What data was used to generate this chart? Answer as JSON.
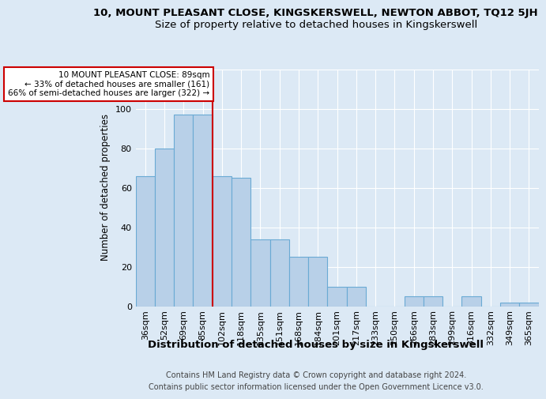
{
  "title": "10, MOUNT PLEASANT CLOSE, KINGSKERSWELL, NEWTON ABBOT, TQ12 5JH",
  "subtitle": "Size of property relative to detached houses in Kingskerswell",
  "xlabel": "Distribution of detached houses by size in Kingskerswell",
  "ylabel": "Number of detached properties",
  "categories": [
    "36sqm",
    "52sqm",
    "69sqm",
    "85sqm",
    "102sqm",
    "118sqm",
    "135sqm",
    "151sqm",
    "168sqm",
    "184sqm",
    "201sqm",
    "217sqm",
    "233sqm",
    "250sqm",
    "266sqm",
    "283sqm",
    "299sqm",
    "316sqm",
    "332sqm",
    "349sqm",
    "365sqm"
  ],
  "values": [
    66,
    80,
    97,
    97,
    66,
    65,
    34,
    34,
    25,
    25,
    10,
    10,
    0,
    0,
    5,
    5,
    0,
    5,
    0,
    2,
    2
  ],
  "bar_color": "#b8d0e8",
  "bar_edge_color": "#6aaad4",
  "annotation_text": "10 MOUNT PLEASANT CLOSE: 89sqm\n← 33% of detached houses are smaller (161)\n66% of semi-detached houses are larger (322) →",
  "annotation_box_color": "#ffffff",
  "annotation_box_edge_color": "#cc0000",
  "vline_color": "#cc0000",
  "ylim": [
    0,
    120
  ],
  "yticks": [
    0,
    20,
    40,
    60,
    80,
    100,
    120
  ],
  "bg_color": "#dce9f5",
  "plot_bg_color": "#dce9f5",
  "grid_color": "#ffffff",
  "footer_line1": "Contains HM Land Registry data © Crown copyright and database right 2024.",
  "footer_line2": "Contains public sector information licensed under the Open Government Licence v3.0.",
  "title_fontsize": 9.5,
  "subtitle_fontsize": 9.5,
  "xlabel_fontsize": 9.5,
  "ylabel_fontsize": 8.5,
  "tick_fontsize": 8,
  "footer_fontsize": 7
}
